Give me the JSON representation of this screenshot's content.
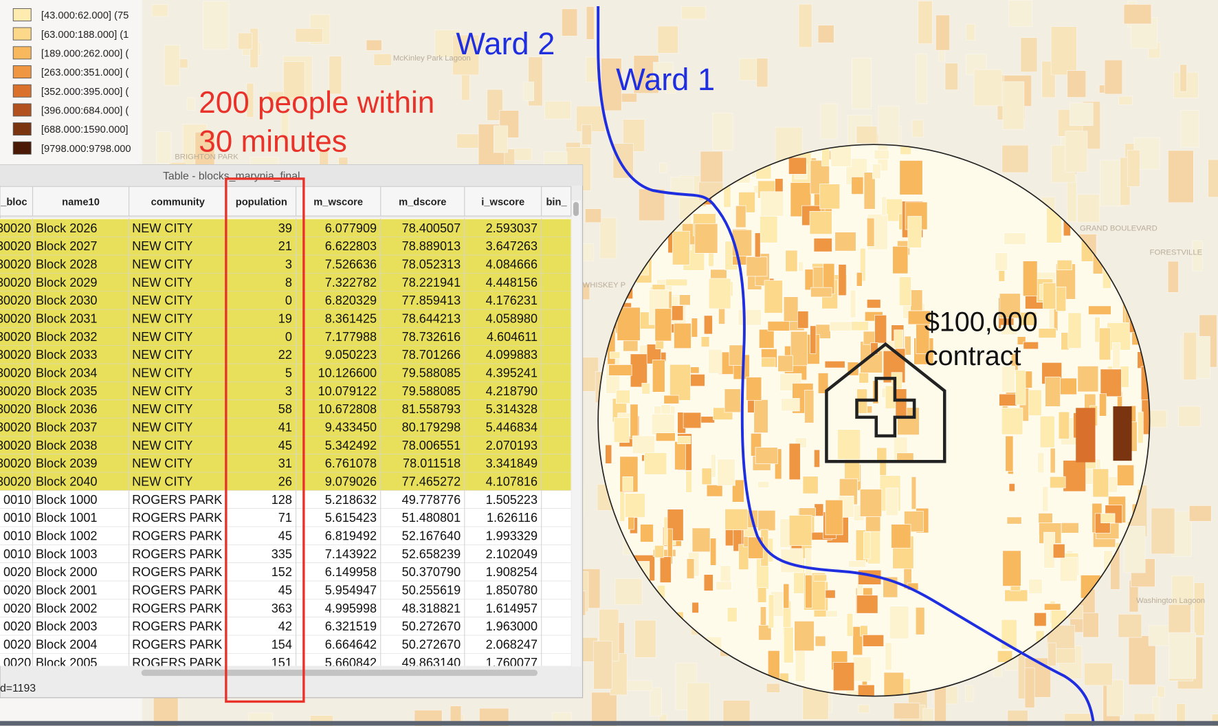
{
  "legend": {
    "items": [
      {
        "label": "[43.000:62.000] (75",
        "color": "#fdebb0"
      },
      {
        "label": "[63.000:188.000] (1",
        "color": "#fcd88a"
      },
      {
        "label": "[189.000:262.000] (",
        "color": "#f8b85e"
      },
      {
        "label": "[263.000:351.000] (",
        "color": "#ee9642"
      },
      {
        "label": "[352.000:395.000] (",
        "color": "#d9712c"
      },
      {
        "label": "[396.000:684.000] (",
        "color": "#b2511f"
      },
      {
        "label": "[688.000:1590.000]",
        "color": "#7a3410"
      },
      {
        "label": "[9798.000:9798.000",
        "color": "#4a1a06"
      }
    ]
  },
  "map": {
    "place_labels": [
      "McKinley Park Lagoon",
      "BRIGHTON PARK",
      "GRAND BOULEVARD",
      "FORESTVILLE",
      "Washington Lagoon",
      "WHISKEY P"
    ],
    "annotations": {
      "ward_2": "Ward 2",
      "ward_1": "Ward 1",
      "people": [
        "200 people within",
        "30 minutes"
      ],
      "contract": [
        "$100,000",
        "contract"
      ]
    }
  },
  "table": {
    "title": "Table - blocks_marynia_final",
    "columns": [
      "_bloc",
      "name10",
      "community",
      "population",
      "m_wscore",
      "m_dscore",
      "i_wscore",
      "bin_"
    ],
    "rows": [
      {
        "selected": true,
        "cells": [
          "30020",
          "Block 2026",
          "NEW CITY",
          "39",
          "6.077909",
          "78.400507",
          "2.593037"
        ]
      },
      {
        "selected": true,
        "cells": [
          "30020",
          "Block 2027",
          "NEW CITY",
          "21",
          "6.622803",
          "78.889013",
          "3.647263"
        ]
      },
      {
        "selected": true,
        "cells": [
          "30020",
          "Block 2028",
          "NEW CITY",
          "3",
          "7.526636",
          "78.052313",
          "4.084666"
        ]
      },
      {
        "selected": true,
        "cells": [
          "30020",
          "Block 2029",
          "NEW CITY",
          "8",
          "7.322782",
          "78.221941",
          "4.448156"
        ]
      },
      {
        "selected": true,
        "cells": [
          "30020",
          "Block 2030",
          "NEW CITY",
          "0",
          "6.820329",
          "77.859413",
          "4.176231"
        ]
      },
      {
        "selected": true,
        "cells": [
          "30020",
          "Block 2031",
          "NEW CITY",
          "19",
          "8.361425",
          "78.644213",
          "4.058980"
        ]
      },
      {
        "selected": true,
        "cells": [
          "30020",
          "Block 2032",
          "NEW CITY",
          "0",
          "7.177988",
          "78.732616",
          "4.604611"
        ]
      },
      {
        "selected": true,
        "cells": [
          "30020",
          "Block 2033",
          "NEW CITY",
          "22",
          "9.050223",
          "78.701266",
          "4.099883"
        ]
      },
      {
        "selected": true,
        "cells": [
          "30020",
          "Block 2034",
          "NEW CITY",
          "5",
          "10.126600",
          "79.588085",
          "4.395241"
        ]
      },
      {
        "selected": true,
        "cells": [
          "30020",
          "Block 2035",
          "NEW CITY",
          "3",
          "10.079122",
          "79.588085",
          "4.218790"
        ]
      },
      {
        "selected": true,
        "cells": [
          "30020",
          "Block 2036",
          "NEW CITY",
          "58",
          "10.672808",
          "81.558793",
          "5.314328"
        ]
      },
      {
        "selected": true,
        "cells": [
          "30020",
          "Block 2037",
          "NEW CITY",
          "41",
          "9.433450",
          "80.179298",
          "5.446834"
        ]
      },
      {
        "selected": true,
        "cells": [
          "30020",
          "Block 2038",
          "NEW CITY",
          "45",
          "5.342492",
          "78.006551",
          "2.070193"
        ]
      },
      {
        "selected": true,
        "cells": [
          "30020",
          "Block 2039",
          "NEW CITY",
          "31",
          "6.761078",
          "78.011518",
          "3.341849"
        ]
      },
      {
        "selected": true,
        "cells": [
          "30020",
          "Block 2040",
          "NEW CITY",
          "26",
          "9.079026",
          "77.465272",
          "4.107816"
        ]
      },
      {
        "selected": false,
        "cells": [
          "0010",
          "Block 1000",
          "ROGERS PARK",
          "128",
          "5.218632",
          "49.778776",
          "1.505223"
        ]
      },
      {
        "selected": false,
        "cells": [
          "0010",
          "Block 1001",
          "ROGERS PARK",
          "71",
          "5.615423",
          "51.480801",
          "1.626116"
        ]
      },
      {
        "selected": false,
        "cells": [
          "0010",
          "Block 1002",
          "ROGERS PARK",
          "45",
          "6.819492",
          "52.167640",
          "1.993329"
        ]
      },
      {
        "selected": false,
        "cells": [
          "0010",
          "Block 1003",
          "ROGERS PARK",
          "335",
          "7.143922",
          "52.658239",
          "2.102049"
        ]
      },
      {
        "selected": false,
        "cells": [
          "0020",
          "Block 2000",
          "ROGERS PARK",
          "152",
          "6.149958",
          "50.370790",
          "1.908254"
        ]
      },
      {
        "selected": false,
        "cells": [
          "0020",
          "Block 2001",
          "ROGERS PARK",
          "45",
          "5.954947",
          "50.255619",
          "1.850780"
        ]
      },
      {
        "selected": false,
        "cells": [
          "0020",
          "Block 2002",
          "ROGERS PARK",
          "363",
          "4.995998",
          "48.318821",
          "1.614957"
        ]
      },
      {
        "selected": false,
        "cells": [
          "0020",
          "Block 2003",
          "ROGERS PARK",
          "42",
          "6.321519",
          "50.272670",
          "1.963000"
        ]
      },
      {
        "selected": false,
        "cells": [
          "0020",
          "Block 2004",
          "ROGERS PARK",
          "154",
          "6.664642",
          "50.272670",
          "2.068247"
        ]
      },
      {
        "selected": false,
        "cells": [
          "0020",
          "Block 2005",
          "ROGERS PARK",
          "151",
          "5.660842",
          "49.863140",
          "1.760077"
        ]
      }
    ],
    "footer": "d=1193"
  }
}
